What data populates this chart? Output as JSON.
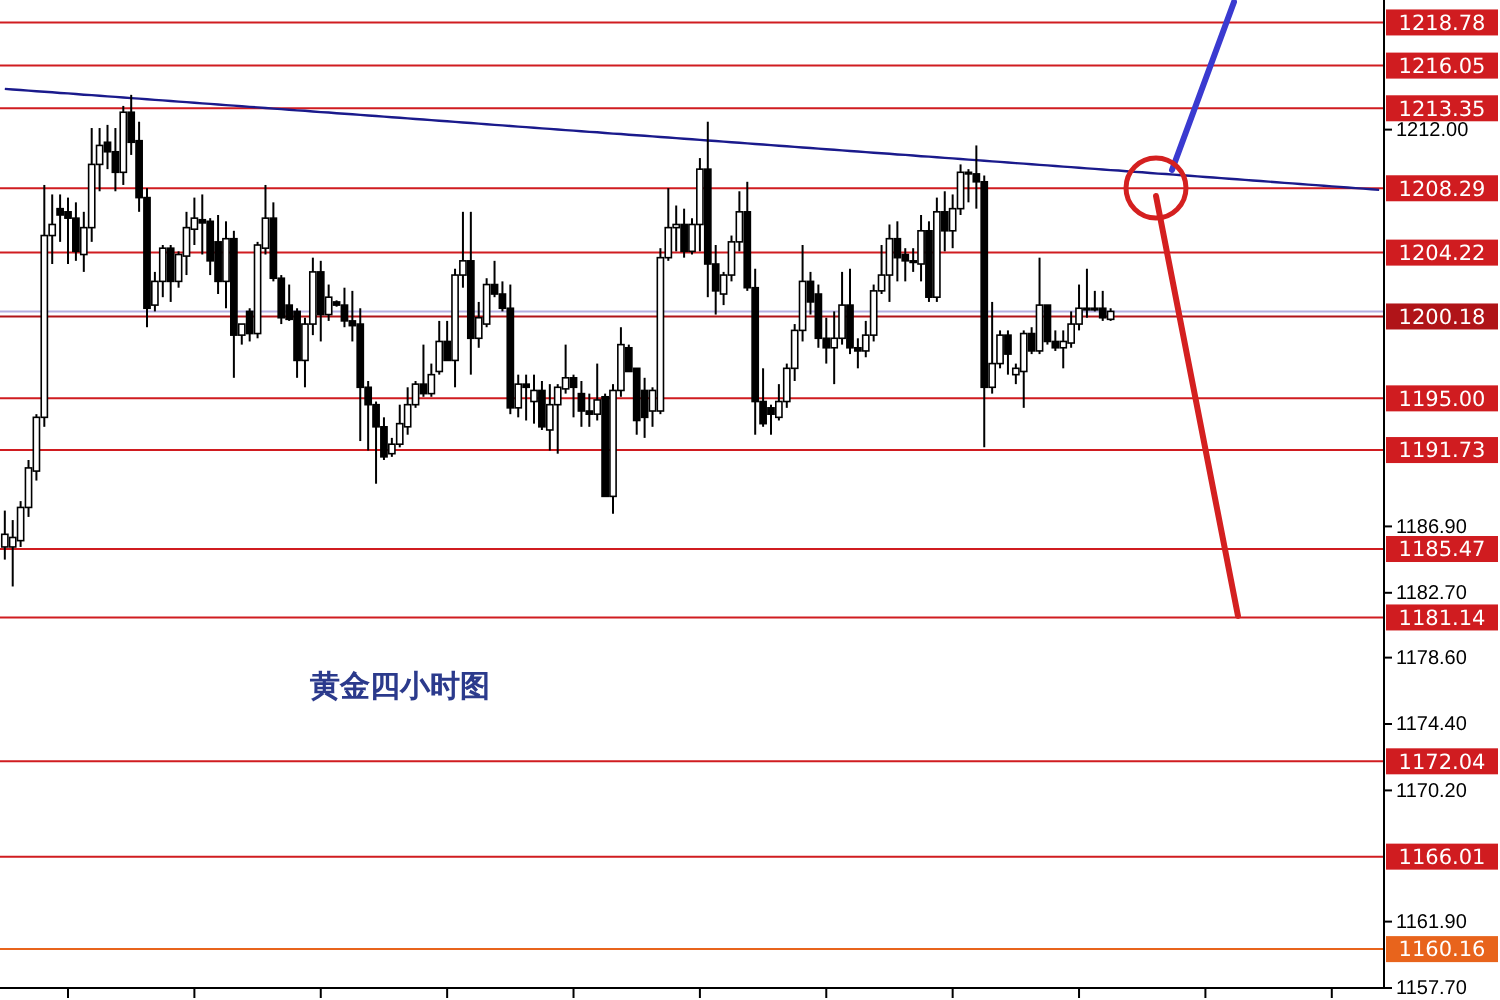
{
  "chart_data": {
    "type": "candlestick",
    "categories": [
      null,
      null,
      null,
      null,
      null,
      null,
      null,
      null,
      null,
      null,
      null,
      null,
      null,
      null,
      null,
      null,
      null,
      null,
      null,
      null,
      null,
      null,
      null,
      null,
      null,
      null,
      null,
      null,
      null,
      null,
      null,
      null,
      null,
      null,
      null,
      null,
      null,
      null,
      null,
      null,
      null,
      null,
      null,
      null,
      null,
      null,
      null,
      null,
      null,
      null,
      null,
      null,
      null,
      null,
      null,
      null,
      null,
      null,
      null,
      null,
      null,
      null,
      null,
      null,
      null,
      null,
      null,
      null,
      null,
      null,
      null,
      null,
      null,
      null,
      null,
      null,
      null,
      null,
      null,
      null,
      null,
      null,
      null,
      null,
      null,
      null,
      null,
      null,
      null,
      null,
      null,
      null,
      null,
      null,
      null,
      null,
      null,
      null,
      null,
      null,
      null,
      null,
      null,
      null,
      null,
      null,
      null,
      null,
      null,
      null,
      null,
      null,
      null,
      null,
      null,
      null,
      null,
      null,
      null,
      null,
      null,
      null,
      null,
      null,
      null,
      null,
      null,
      null,
      null,
      null,
      null,
      null,
      null,
      null,
      null,
      null,
      null,
      null,
      null,
      null,
      null,
      null,
      null,
      null,
      null,
      null,
      null,
      null,
      null,
      null,
      null,
      null,
      null,
      null,
      null,
      null,
      null,
      null,
      null,
      null,
      null,
      null,
      null,
      null,
      null,
      null,
      null,
      null,
      null,
      null,
      null,
      null,
      null,
      null,
      null
    ],
    "ohlc": [
      [
        1185.6,
        1187.9,
        1184.8,
        1186.4
      ],
      [
        1185.6,
        1187.3,
        1183.1,
        1186.2
      ],
      [
        1186.0,
        1188.5,
        1185.6,
        1188.1
      ],
      [
        1188.1,
        1191.1,
        1187.5,
        1190.6
      ],
      [
        1190.4,
        1194.0,
        1189.8,
        1193.8
      ],
      [
        1193.8,
        1208.5,
        1193.2,
        1205.3
      ],
      [
        1205.3,
        1207.9,
        1203.5,
        1206.0
      ],
      [
        1207.0,
        1207.9,
        1204.9,
        1206.6
      ],
      [
        1206.8,
        1207.7,
        1203.5,
        1206.4
      ],
      [
        1206.4,
        1207.4,
        1203.7,
        1204.3
      ],
      [
        1204.1,
        1206.8,
        1203.0,
        1205.8
      ],
      [
        1205.8,
        1212.1,
        1204.9,
        1209.8
      ],
      [
        1209.8,
        1212.1,
        1208.1,
        1211.0
      ],
      [
        1211.2,
        1212.3,
        1209.5,
        1210.6
      ],
      [
        1210.6,
        1212.1,
        1208.1,
        1209.3
      ],
      [
        1209.3,
        1213.5,
        1208.5,
        1213.1
      ],
      [
        1213.1,
        1214.2,
        1210.4,
        1211.2
      ],
      [
        1211.3,
        1212.5,
        1206.8,
        1207.7
      ],
      [
        1207.7,
        1208.3,
        1199.5,
        1200.7
      ],
      [
        1200.9,
        1203.0,
        1200.5,
        1202.4
      ],
      [
        1202.4,
        1204.7,
        1201.4,
        1204.5
      ],
      [
        1204.5,
        1204.7,
        1201.1,
        1202.4
      ],
      [
        1202.4,
        1204.3,
        1202.0,
        1204.1
      ],
      [
        1204.0,
        1206.8,
        1202.8,
        1205.8
      ],
      [
        1205.7,
        1207.7,
        1204.7,
        1206.4
      ],
      [
        1206.3,
        1207.9,
        1204.1,
        1206.1
      ],
      [
        1206.2,
        1206.4,
        1202.8,
        1203.7
      ],
      [
        1204.9,
        1206.6,
        1201.6,
        1202.4
      ],
      [
        1202.4,
        1206.2,
        1200.7,
        1205.1
      ],
      [
        1205.1,
        1205.6,
        1196.3,
        1199.0
      ],
      [
        1199.0,
        1199.7,
        1198.4,
        1199.7
      ],
      [
        1200.5,
        1200.7,
        1198.6,
        1199.1
      ],
      [
        1199.1,
        1204.9,
        1198.8,
        1204.7
      ],
      [
        1204.5,
        1208.5,
        1204.1,
        1206.4
      ],
      [
        1206.4,
        1207.4,
        1202.4,
        1202.6
      ],
      [
        1202.6,
        1202.8,
        1199.7,
        1200.1
      ],
      [
        1200.9,
        1202.2,
        1199.9,
        1200.0
      ],
      [
        1200.5,
        1200.7,
        1196.3,
        1197.4
      ],
      [
        1197.4,
        1200.1,
        1195.7,
        1199.7
      ],
      [
        1199.7,
        1203.9,
        1199.0,
        1203.0
      ],
      [
        1203.0,
        1203.7,
        1198.6,
        1200.3
      ],
      [
        1200.3,
        1202.2,
        1199.9,
        1201.4
      ],
      [
        1201.1,
        1201.2,
        1200.8,
        1200.9
      ],
      [
        1200.9,
        1202.0,
        1199.5,
        1199.9
      ],
      [
        1199.9,
        1201.8,
        1198.6,
        1199.6
      ],
      [
        1199.7,
        1200.7,
        1192.3,
        1195.7
      ],
      [
        1195.7,
        1196.1,
        1191.7,
        1194.6
      ],
      [
        1194.6,
        1194.8,
        1189.6,
        1193.2
      ],
      [
        1193.2,
        1193.8,
        1191.1,
        1191.3
      ],
      [
        1191.5,
        1192.5,
        1191.3,
        1192.1
      ],
      [
        1192.1,
        1194.6,
        1191.9,
        1193.4
      ],
      [
        1193.2,
        1195.7,
        1192.7,
        1194.6
      ],
      [
        1194.6,
        1196.1,
        1194.4,
        1195.9
      ],
      [
        1195.9,
        1198.4,
        1195.1,
        1195.3
      ],
      [
        1195.3,
        1197.2,
        1195.1,
        1196.5
      ],
      [
        1196.7,
        1199.9,
        1196.5,
        1198.6
      ],
      [
        1198.6,
        1199.9,
        1197.4,
        1197.4
      ],
      [
        1197.4,
        1203.2,
        1195.7,
        1202.8
      ],
      [
        1202.8,
        1206.8,
        1202.0,
        1203.7
      ],
      [
        1203.7,
        1206.8,
        1196.5,
        1198.8
      ],
      [
        1198.8,
        1201.1,
        1198.2,
        1200.1
      ],
      [
        1199.7,
        1202.6,
        1199.5,
        1202.2
      ],
      [
        1202.2,
        1203.7,
        1201.4,
        1201.6
      ],
      [
        1201.6,
        1202.4,
        1200.5,
        1200.7
      ],
      [
        1200.7,
        1202.2,
        1194.0,
        1194.4
      ],
      [
        1194.4,
        1196.5,
        1193.8,
        1195.9
      ],
      [
        1195.9,
        1196.5,
        1193.6,
        1195.7
      ],
      [
        1194.8,
        1196.5,
        1193.4,
        1195.5
      ],
      [
        1195.5,
        1196.1,
        1193.0,
        1193.2
      ],
      [
        1193.0,
        1195.9,
        1191.7,
        1194.6
      ],
      [
        1194.6,
        1195.9,
        1191.5,
        1195.7
      ],
      [
        1195.6,
        1198.4,
        1195.3,
        1196.3
      ],
      [
        1196.3,
        1196.5,
        1193.8,
        1195.7
      ],
      [
        1195.3,
        1196.1,
        1193.2,
        1194.2
      ],
      [
        1194.2,
        1195.3,
        1193.2,
        1194.0
      ],
      [
        1194.0,
        1197.2,
        1193.6,
        1194.9
      ],
      [
        1195.1,
        1195.3,
        1188.8,
        1188.8
      ],
      [
        1188.8,
        1195.9,
        1187.7,
        1195.5
      ],
      [
        1195.5,
        1199.5,
        1195.1,
        1198.4
      ],
      [
        1198.2,
        1198.4,
        1196.7,
        1196.7
      ],
      [
        1196.9,
        1196.9,
        1192.7,
        1193.6
      ],
      [
        1195.5,
        1196.3,
        1192.5,
        1193.8
      ],
      [
        1194.2,
        1195.7,
        1193.2,
        1195.5
      ],
      [
        1194.2,
        1204.5,
        1194.0,
        1203.9
      ],
      [
        1203.9,
        1208.3,
        1203.7,
        1205.8
      ],
      [
        1205.8,
        1207.2,
        1204.3,
        1206.0
      ],
      [
        1206.0,
        1207.0,
        1203.9,
        1204.3
      ],
      [
        1204.3,
        1206.4,
        1204.1,
        1206.0
      ],
      [
        1206.0,
        1210.2,
        1204.3,
        1209.5
      ],
      [
        1209.5,
        1212.5,
        1201.4,
        1203.5
      ],
      [
        1203.5,
        1204.7,
        1200.3,
        1201.8
      ],
      [
        1201.6,
        1203.0,
        1200.9,
        1202.8
      ],
      [
        1202.8,
        1205.3,
        1202.4,
        1204.9
      ],
      [
        1204.9,
        1208.1,
        1204.3,
        1206.8
      ],
      [
        1206.8,
        1208.7,
        1201.8,
        1202.0
      ],
      [
        1202.0,
        1203.2,
        1192.7,
        1194.8
      ],
      [
        1194.8,
        1196.9,
        1193.2,
        1193.4
      ],
      [
        1194.4,
        1194.6,
        1192.7,
        1194.0
      ],
      [
        1193.8,
        1195.9,
        1193.6,
        1194.8
      ],
      [
        1194.8,
        1197.2,
        1194.4,
        1196.9
      ],
      [
        1196.9,
        1199.7,
        1196.1,
        1199.3
      ],
      [
        1199.3,
        1204.7,
        1198.6,
        1202.4
      ],
      [
        1202.4,
        1203.0,
        1200.3,
        1201.1
      ],
      [
        1201.6,
        1202.2,
        1198.2,
        1198.8
      ],
      [
        1198.8,
        1200.1,
        1197.2,
        1198.2
      ],
      [
        1198.2,
        1200.5,
        1195.9,
        1198.8
      ],
      [
        1198.8,
        1203.0,
        1198.4,
        1200.9
      ],
      [
        1200.9,
        1203.2,
        1197.8,
        1198.2
      ],
      [
        1198.2,
        1198.8,
        1196.9,
        1198.0
      ],
      [
        1198.0,
        1199.9,
        1197.6,
        1199.0
      ],
      [
        1199.0,
        1202.2,
        1198.6,
        1201.8
      ],
      [
        1201.8,
        1204.7,
        1201.6,
        1202.8
      ],
      [
        1202.8,
        1206.0,
        1201.1,
        1205.1
      ],
      [
        1205.1,
        1206.2,
        1202.4,
        1203.9
      ],
      [
        1204.1,
        1204.5,
        1202.4,
        1203.7
      ],
      [
        1203.7,
        1204.5,
        1203.0,
        1203.6
      ],
      [
        1203.5,
        1206.6,
        1202.4,
        1205.6
      ],
      [
        1205.6,
        1206.2,
        1201.1,
        1201.4
      ],
      [
        1201.4,
        1207.7,
        1201.1,
        1206.8
      ],
      [
        1206.8,
        1208.1,
        1204.3,
        1205.6
      ],
      [
        1205.6,
        1207.9,
        1204.5,
        1207.0
      ],
      [
        1207.0,
        1209.8,
        1206.6,
        1209.3
      ],
      [
        1209.2,
        1209.5,
        1207.4,
        1209.3
      ],
      [
        1209.2,
        1211.0,
        1207.0,
        1208.7
      ],
      [
        1208.7,
        1209.1,
        1191.9,
        1195.7
      ],
      [
        1195.7,
        1201.1,
        1195.3,
        1197.2
      ],
      [
        1197.2,
        1199.3,
        1196.9,
        1199.0
      ],
      [
        1199.0,
        1199.3,
        1196.5,
        1197.8
      ],
      [
        1196.5,
        1197.2,
        1195.9,
        1196.9
      ],
      [
        1196.7,
        1199.3,
        1194.4,
        1199.1
      ],
      [
        1199.1,
        1199.5,
        1197.8,
        1198.0
      ],
      [
        1198.0,
        1203.9,
        1197.8,
        1200.9
      ],
      [
        1200.9,
        1200.9,
        1198.4,
        1198.6
      ],
      [
        1198.6,
        1199.3,
        1198.0,
        1198.2
      ],
      [
        1198.2,
        1199.3,
        1196.9,
        1198.6
      ],
      [
        1198.5,
        1200.5,
        1198.2,
        1199.7
      ],
      [
        1199.7,
        1202.2,
        1199.3,
        1200.7
      ],
      [
        1200.7,
        1203.2,
        1200.1,
        1200.6
      ],
      [
        1200.7,
        1201.8,
        1200.5,
        1200.6
      ],
      [
        1200.7,
        1201.8,
        1199.9,
        1200.1
      ],
      [
        1200.0,
        1200.7,
        1199.9,
        1200.5
      ],
      null,
      null,
      null,
      null,
      null,
      null,
      null,
      null,
      null,
      null,
      null,
      null,
      null,
      null,
      null,
      null,
      null,
      null,
      null,
      null,
      null,
      null,
      null,
      null,
      null,
      null,
      null,
      null,
      null,
      null,
      null,
      null,
      null,
      null
    ],
    "series": [
      {
        "type": "line",
        "color": "#1a1a8c",
        "values": [
          1214.58,
          1214.54,
          1214.51,
          1214.47,
          1214.43,
          1214.4,
          1214.36,
          1214.32,
          1214.29,
          1214.25,
          1214.21,
          1214.18,
          1214.14,
          1214.1,
          1214.07,
          1214.03,
          1213.99,
          1213.96,
          1213.92,
          1213.88,
          1213.85,
          1213.81,
          1213.77,
          1213.74,
          1213.7,
          1213.66,
          1213.63,
          1213.59,
          1213.55,
          1213.52,
          1213.48,
          1213.44,
          1213.41,
          1213.37,
          1213.33,
          1213.3,
          1213.26,
          1213.22,
          1213.19,
          1213.15,
          1213.11,
          1213.08,
          1213.04,
          1213.0,
          1212.97,
          1212.93,
          1212.89,
          1212.86,
          1212.82,
          1212.78,
          1212.75,
          1212.71,
          1212.67,
          1212.64,
          1212.6,
          1212.56,
          1212.53,
          1212.49,
          1212.45,
          1212.42,
          1212.38,
          1212.34,
          1212.3,
          1212.27,
          1212.23,
          1212.19,
          1212.16,
          1212.12,
          1212.08,
          1212.05,
          1212.01,
          1211.97,
          1211.94,
          1211.9,
          1211.86,
          1211.83,
          1211.79,
          1211.75,
          1211.72,
          1211.68,
          1211.64,
          1211.61,
          1211.57,
          1211.53,
          1211.5,
          1211.46,
          1211.42,
          1211.39,
          1211.35,
          1211.31,
          1211.28,
          1211.24,
          1211.2,
          1211.17,
          1211.13,
          1211.09,
          1211.06,
          1211.02,
          1210.98,
          1210.95,
          1210.91,
          1210.87,
          1210.84,
          1210.8,
          1210.76,
          1210.73,
          1210.69,
          1210.65,
          1210.62,
          1210.58,
          1210.54,
          1210.51,
          1210.47,
          1210.43,
          1210.4,
          1210.36,
          1210.32,
          1210.29,
          1210.25,
          1210.21,
          1210.18,
          1210.14,
          1210.1,
          1210.07,
          1210.03,
          1209.99,
          1209.96,
          1209.92,
          1209.88,
          1209.85,
          1209.81,
          1209.77,
          1209.74,
          1209.7,
          1209.66,
          1209.63,
          1209.59,
          1209.55,
          1209.52,
          1209.48,
          1209.44,
          1209.41,
          1209.37,
          1209.33,
          1209.3,
          1209.26,
          1209.22,
          1209.19,
          1209.15,
          1209.11,
          1209.08,
          1209.04,
          1209.0,
          1208.97,
          1208.93,
          1208.89,
          1208.86,
          1208.82,
          1208.78,
          1208.75,
          1208.71,
          1208.67,
          1208.63,
          1208.6,
          1208.56,
          1208.52,
          1208.49,
          1208.45,
          1208.41,
          1208.38,
          1208.34,
          1208.3,
          1208.27,
          1208.23,
          1208.19
        ]
      }
    ],
    "ylim": [
      1157.7,
      1220.2
    ],
    "yticks": [
      {
        "value": 1157.7,
        "label": "1157.70"
      },
      {
        "value": 1161.9,
        "label": "1161.90"
      },
      {
        "value": 1170.2,
        "label": "1170.20"
      },
      {
        "value": 1174.4,
        "label": "1174.40"
      },
      {
        "value": 1178.6,
        "label": "1178.60"
      },
      {
        "value": 1182.7,
        "label": "1182.70"
      },
      {
        "value": 1186.9,
        "label": "1186.90"
      },
      {
        "value": 1212.0,
        "label": "1212.00"
      }
    ],
    "tick_labels": "y",
    "ref_lines": [
      {
        "axis": "y",
        "value": 1218.78,
        "label": "1218.78",
        "color": "#d01c20"
      },
      {
        "axis": "y",
        "value": 1216.05,
        "label": "1216.05",
        "color": "#d01c20"
      },
      {
        "axis": "y",
        "value": 1213.35,
        "label": "1213.35",
        "color": "#d01c20"
      },
      {
        "axis": "y",
        "value": 1208.29,
        "label": "1208.29",
        "color": "#d01c20"
      },
      {
        "axis": "y",
        "value": 1204.22,
        "label": "1204.22",
        "color": "#d01c20"
      },
      {
        "axis": "y",
        "value": 1200.5,
        "label": null,
        "color": "#b4aee0"
      },
      {
        "axis": "y",
        "value": 1200.18,
        "label": "1200.18",
        "color": "#b01418"
      },
      {
        "axis": "y",
        "value": 1195.0,
        "label": "1195.00",
        "color": "#d01c20"
      },
      {
        "axis": "y",
        "value": 1191.73,
        "label": "1191.73",
        "color": "#d01c20"
      },
      {
        "axis": "y",
        "value": 1185.47,
        "label": "1185.47",
        "color": "#d01c20"
      },
      {
        "axis": "y",
        "value": 1181.14,
        "label": "1181.14",
        "color": "#d01c20"
      },
      {
        "axis": "y",
        "value": 1172.04,
        "label": "1172.04",
        "color": "#d01c20"
      },
      {
        "axis": "y",
        "value": 1166.01,
        "label": "1166.01",
        "color": "#d01c20"
      },
      {
        "axis": "y",
        "value": 1160.16,
        "label": "1160.16",
        "color": "#e8641c"
      }
    ],
    "annotations": [
      "黄金四小时图"
    ]
  }
}
